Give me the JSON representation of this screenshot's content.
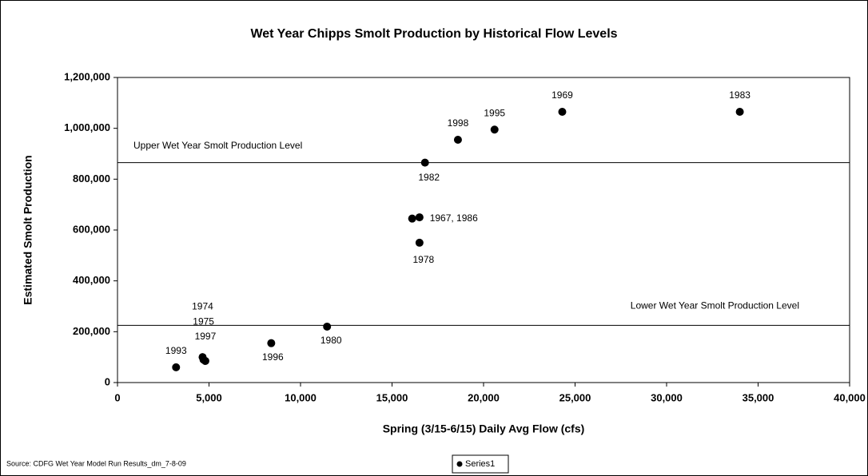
{
  "chart_data": {
    "type": "scatter",
    "title": "Wet Year Chipps Smolt Production by Historical Flow Levels",
    "x_label": "Spring (3/15-6/15) Daily Avg Flow (cfs)",
    "y_label": "Estimated Smolt Production",
    "source": "Source: CDFG Wet Year Model Run Results_dm_7-8-09",
    "series": [
      {
        "name": "Series1",
        "color": "#000000",
        "x": [
          3200,
          4650,
          4700,
          4800,
          8400,
          11450,
          16100,
          16500,
          16500,
          16800,
          18600,
          20600,
          24300,
          34000
        ],
        "values": [
          60000,
          100000,
          90000,
          85000,
          155000,
          220000,
          645000,
          650000,
          550000,
          865000,
          955000,
          995000,
          1065000,
          1065000
        ],
        "point_labels": [
          "1993",
          "1974",
          "1975",
          "1997",
          "1996",
          "1980",
          "1967, 1986",
          null,
          "1978",
          "1982",
          "1998",
          "1995",
          "1969",
          "1983"
        ]
      }
    ],
    "reference_lines": [
      {
        "label": "Upper Wet Year Smolt Production Level",
        "value": 865000
      },
      {
        "label": "Lower Wet Year Smolt Production Level",
        "value": 225000
      }
    ],
    "xlim": [
      0,
      40000
    ],
    "xticks": [
      0,
      {
        "value": 5000,
        "label": "5,000"
      },
      {
        "value": 10000,
        "label": "10,000"
      },
      {
        "value": 15000,
        "label": "15,000"
      },
      {
        "value": 20000,
        "label": "20,000"
      },
      {
        "value": 25000,
        "label": "25,000"
      },
      {
        "value": 30000,
        "label": "30,000"
      },
      {
        "value": 35000,
        "label": "35,000"
      },
      {
        "value": 40000,
        "label": "40,000"
      }
    ],
    "ylim": [
      0,
      1200000
    ],
    "yticks": [
      0,
      {
        "value": 200000,
        "label": "200,000"
      },
      {
        "value": 400000,
        "label": "400,000"
      },
      {
        "value": 600000,
        "label": "600,000"
      },
      {
        "value": 800000,
        "label": "800,000"
      },
      {
        "value": 1000000,
        "label": "1,000,000"
      },
      {
        "value": 1200000,
        "label": "1,200,000"
      }
    ],
    "grid": false,
    "legend": "bottom"
  }
}
